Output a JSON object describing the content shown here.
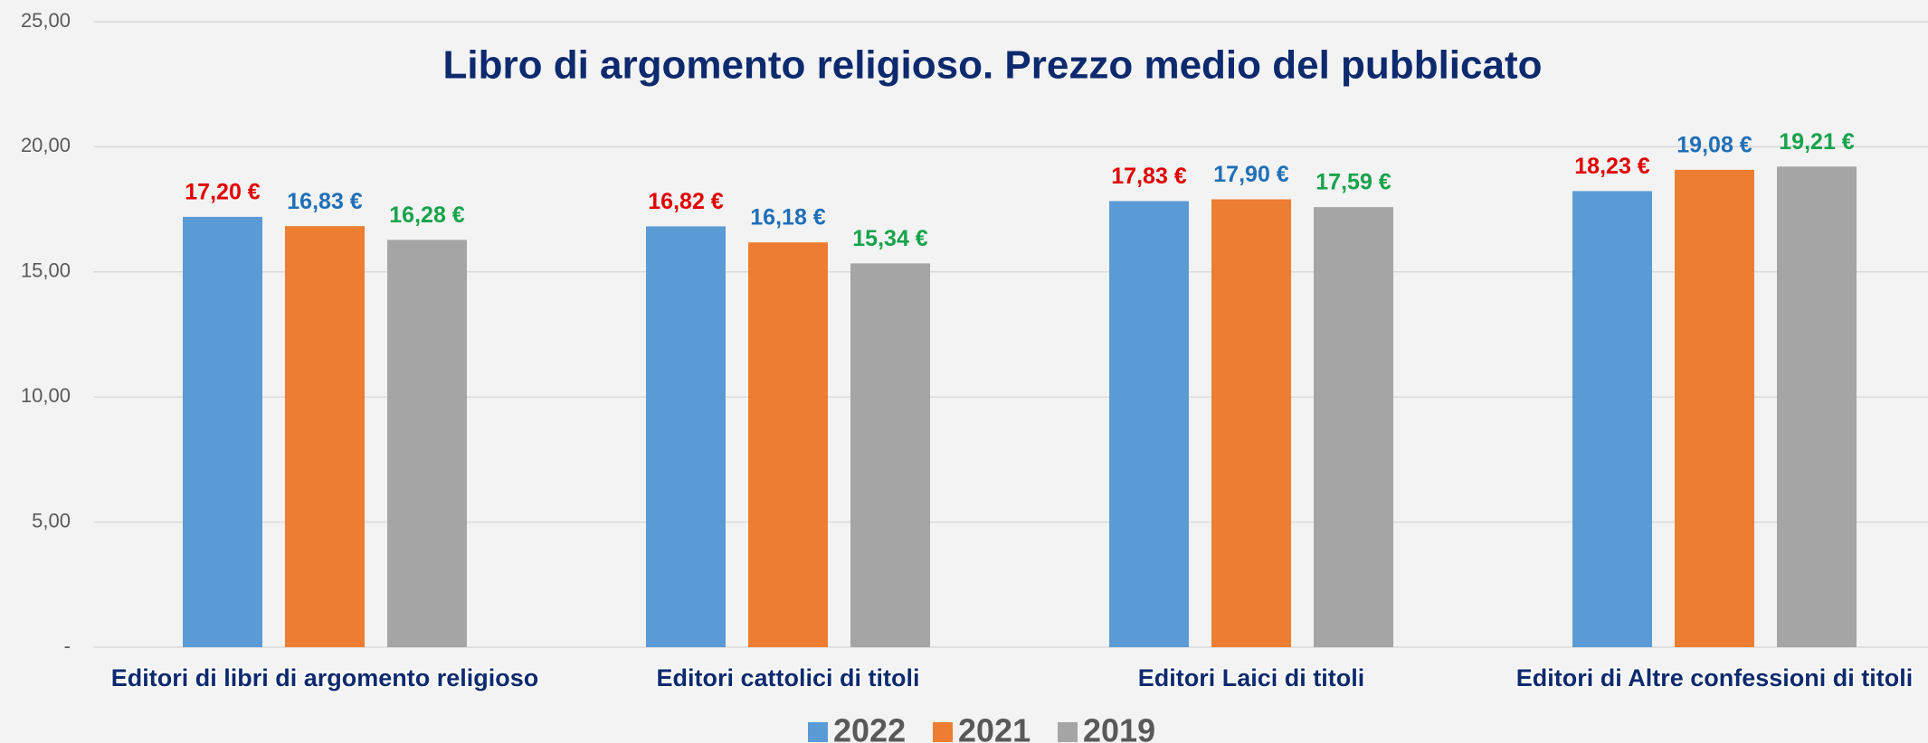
{
  "chart_data": {
    "type": "bar",
    "title": "Libro di argomento religioso. Prezzo medio del pubblicato",
    "categories": [
      "Editori di libri di argomento religioso",
      "Editori cattolici di titoli",
      "Editori Laici di titoli",
      "Editori di Altre confessioni di titoli"
    ],
    "series": [
      {
        "name": "2022",
        "color": "#5b9bd5",
        "label_color": "#e00000",
        "values": [
          17.2,
          16.82,
          17.83,
          18.23
        ],
        "value_labels": [
          "17,20 €",
          "16,82 €",
          "17,83 €",
          "18,23 €"
        ]
      },
      {
        "name": "2021",
        "color": "#ed7d31",
        "label_color": "#1f6fb8",
        "values": [
          16.83,
          16.18,
          17.9,
          19.08
        ],
        "value_labels": [
          "16,83 €",
          "16,18 €",
          "17,90 €",
          "19,08 €"
        ]
      },
      {
        "name": "2019",
        "color": "#a5a5a5",
        "label_color": "#16a34a",
        "values": [
          16.28,
          15.34,
          17.59,
          19.21
        ],
        "value_labels": [
          "16,28 €",
          "15,34 €",
          "17,59 €",
          "19,21 €"
        ]
      }
    ],
    "ylim": [
      0,
      25
    ],
    "yticks": [
      {
        "value": 0,
        "label": "-"
      },
      {
        "value": 5,
        "label": "5,00"
      },
      {
        "value": 10,
        "label": "10,00"
      },
      {
        "value": 15,
        "label": "15,00"
      },
      {
        "value": 20,
        "label": "20,00"
      },
      {
        "value": 25,
        "label": "25,00"
      }
    ],
    "grid": true,
    "legend": "bottom"
  }
}
